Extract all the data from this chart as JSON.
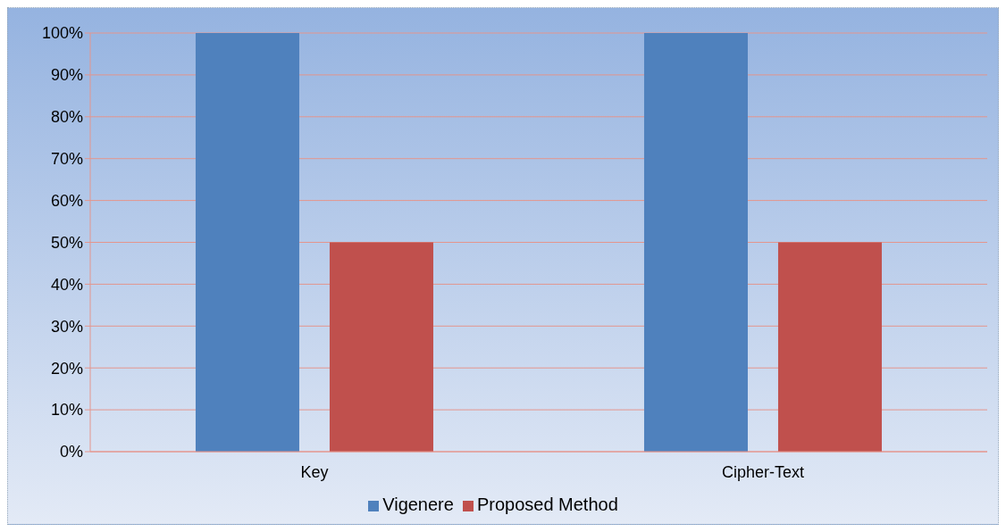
{
  "chart_data": {
    "type": "bar",
    "categories": [
      "Key",
      "Cipher-Text"
    ],
    "series": [
      {
        "name": "Vigenere",
        "color": "#4f81bd",
        "values": [
          100,
          100
        ]
      },
      {
        "name": "Proposed Method",
        "color": "#c0504d",
        "values": [
          50,
          50
        ]
      }
    ],
    "ylim": [
      0,
      100
    ],
    "yticks": [
      {
        "value": 0,
        "label": "0%"
      },
      {
        "value": 10,
        "label": "10%"
      },
      {
        "value": 20,
        "label": "20%"
      },
      {
        "value": 30,
        "label": "30%"
      },
      {
        "value": 40,
        "label": "40%"
      },
      {
        "value": 50,
        "label": "50%"
      },
      {
        "value": 60,
        "label": "60%"
      },
      {
        "value": 70,
        "label": "70%"
      },
      {
        "value": 80,
        "label": "80%"
      },
      {
        "value": 90,
        "label": "90%"
      },
      {
        "value": 100,
        "label": "100%"
      }
    ],
    "grid": "y",
    "legend": "bottom"
  }
}
